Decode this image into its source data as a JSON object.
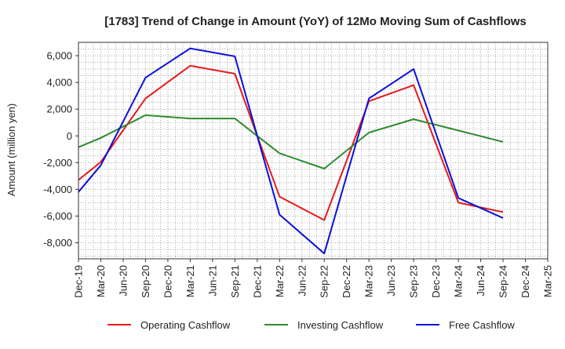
{
  "chart_data": {
    "type": "line",
    "title": "[1783]  Trend of Change in Amount (YoY) of 12Mo Moving Sum of Cashflows",
    "xlabel": "",
    "ylabel": "Amount (million yen)",
    "categories": [
      "Dec-19",
      "Mar-20",
      "Jun-20",
      "Sep-20",
      "Dec-20",
      "Mar-21",
      "Jun-21",
      "Sep-21",
      "Dec-21",
      "Mar-22",
      "Jun-22",
      "Sep-22",
      "Dec-22",
      "Mar-23",
      "Jun-23",
      "Sep-23",
      "Dec-23",
      "Mar-24",
      "Jun-24",
      "Sep-24",
      "Dec-24",
      "Mar-25"
    ],
    "ylim": [
      -9200,
      7000
    ],
    "yticks": [
      -8000,
      -6000,
      -4000,
      -2000,
      0,
      2000,
      4000,
      6000
    ],
    "ytick_labels": [
      "-8,000",
      "-6,000",
      "-4,000",
      "-2,000",
      "0",
      "2,000",
      "4,000",
      "6,000"
    ],
    "series": [
      {
        "name": "Operating Cashflow",
        "color": "#e31a1c",
        "values": [
          -3300,
          -1950,
          null,
          2800,
          null,
          5250,
          null,
          4650,
          0,
          -4550,
          null,
          -6300,
          null,
          2600,
          null,
          3800,
          null,
          -5000,
          null,
          -5700,
          null,
          null
        ]
      },
      {
        "name": "Investing Cashflow",
        "color": "#2e8b2e",
        "values": [
          -850,
          -150,
          null,
          1550,
          null,
          1300,
          null,
          1300,
          0,
          -1300,
          null,
          -2450,
          null,
          250,
          null,
          1250,
          null,
          400,
          null,
          -450,
          null,
          null
        ]
      },
      {
        "name": "Free Cashflow",
        "color": "#0a10d6",
        "values": [
          -4200,
          -2200,
          null,
          4350,
          null,
          6550,
          null,
          5950,
          0,
          -5900,
          null,
          -8800,
          null,
          2800,
          null,
          5000,
          null,
          -4650,
          null,
          -6150,
          null,
          null
        ]
      }
    ],
    "grid": true,
    "legend_position": "bottom"
  }
}
